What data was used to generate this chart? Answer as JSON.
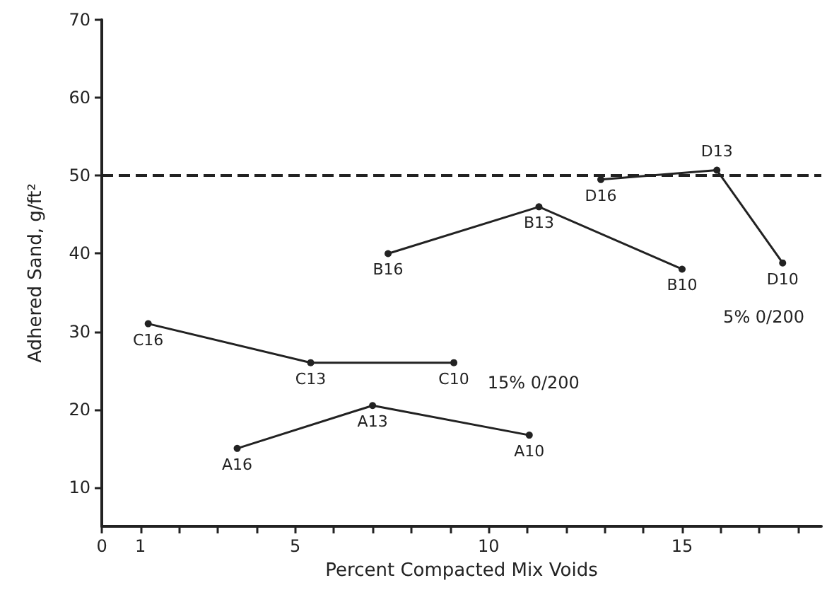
{
  "chart_data": {
    "type": "line",
    "xlabel": "Percent Compacted Mix Voids",
    "ylabel": "Adhered Sand, g/ft²",
    "xlim": [
      0,
      18.6
    ],
    "ylim": [
      5,
      70
    ],
    "xticks": [
      0,
      1,
      {
        "value": 2,
        "label": null
      },
      {
        "value": 3,
        "label": null
      },
      {
        "value": 4,
        "label": null
      },
      5,
      {
        "value": 6,
        "label": null
      },
      {
        "value": 7,
        "label": null
      },
      {
        "value": 8,
        "label": null
      },
      {
        "value": 9,
        "label": null
      },
      10,
      {
        "value": 11,
        "label": null
      },
      {
        "value": 12,
        "label": null
      },
      {
        "value": 13,
        "label": null
      },
      {
        "value": 14,
        "label": null
      },
      15,
      {
        "value": 16,
        "label": null
      },
      {
        "value": 17,
        "label": null
      },
      {
        "value": 18,
        "label": null
      }
    ],
    "yticks": [
      10,
      20,
      30,
      40,
      50,
      60,
      70
    ],
    "series": [
      {
        "color": "#222222",
        "x": [
          1.2,
          5.4,
          9.1
        ],
        "values": [
          31,
          26,
          26
        ]
      },
      {
        "color": "#222222",
        "x": [
          3.5,
          7.0,
          11.05
        ],
        "values": [
          15,
          20.5,
          16.7
        ]
      },
      {
        "color": "#222222",
        "x": [
          7.4,
          11.3,
          15.0
        ],
        "values": [
          40,
          46,
          38
        ]
      },
      {
        "color": "#222222",
        "x": [
          12.9,
          15.9,
          17.6
        ],
        "values": [
          49.5,
          50.7,
          38.8
        ]
      }
    ],
    "marker": "circle",
    "line_style": "solid",
    "ref_lines": [
      {
        "axis": "y",
        "value": 50,
        "line_style": "dashed",
        "color": "#222222"
      }
    ],
    "annotations": [
      {
        "text": "C16",
        "x": 1.2,
        "y": 31
      },
      {
        "text": "C13",
        "x": 5.4,
        "y": 26
      },
      {
        "text": "C10",
        "x": 9.1,
        "y": 26
      },
      {
        "text": "A16",
        "x": 3.5,
        "y": 15
      },
      {
        "text": "A13",
        "x": 7.0,
        "y": 20.5
      },
      {
        "text": "A10",
        "x": 11.05,
        "y": 16.7
      },
      {
        "text": "B16",
        "x": 7.4,
        "y": 40
      },
      {
        "text": "B13",
        "x": 11.3,
        "y": 46
      },
      {
        "text": "B10",
        "x": 15.0,
        "y": 38
      },
      {
        "text": "D16",
        "x": 12.9,
        "y": 49.5
      },
      {
        "text": "D13",
        "x": 15.9,
        "y": 50.7
      },
      {
        "text": "D10",
        "x": 17.6,
        "y": 38.8
      },
      "15% 0/200",
      "5% 0/200"
    ]
  }
}
